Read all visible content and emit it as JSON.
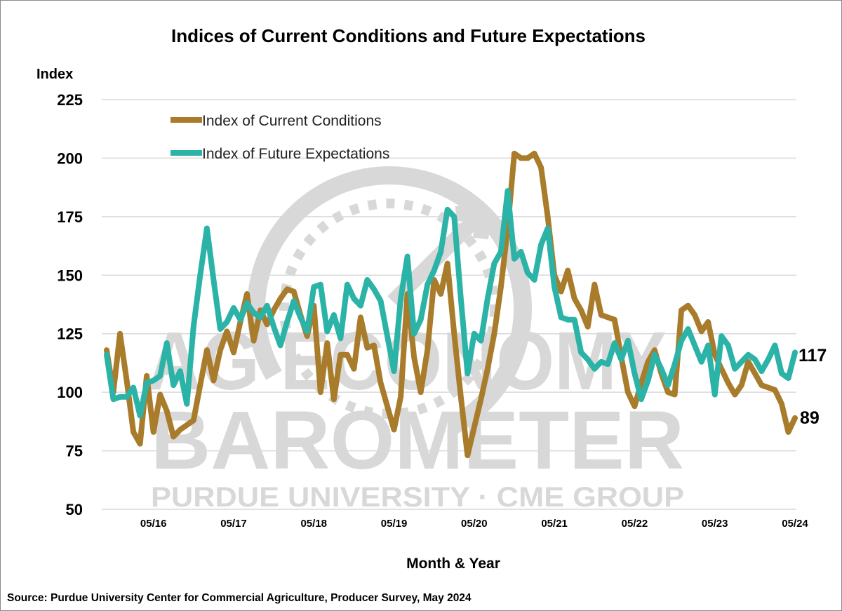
{
  "chart_data": {
    "type": "line",
    "title": "Indices of Current Conditions and Future Expectations",
    "ylabel": "Index",
    "xlabel": "Month & Year",
    "ylim": [
      50,
      225
    ],
    "yticks": [
      "50",
      "75",
      "100",
      "125",
      "150",
      "175",
      "200",
      "225"
    ],
    "x_start": "10/15",
    "x_end": "05/24",
    "xticks": [
      "05/16",
      "05/17",
      "05/18",
      "05/19",
      "05/20",
      "05/21",
      "05/22",
      "05/23",
      "05/24"
    ],
    "grid": true,
    "legend_position": "top-left",
    "series": [
      {
        "name": "Index of Current Conditions",
        "color": "#A97C2C",
        "end_label": "89",
        "values": [
          118,
          100,
          125,
          105,
          83,
          78,
          107,
          83,
          99,
          92,
          81,
          84,
          86,
          88,
          103,
          118,
          105,
          118,
          126,
          117,
          130,
          142,
          122,
          135,
          129,
          135,
          140,
          144,
          143,
          133,
          124,
          137,
          100,
          121,
          97,
          116,
          116,
          110,
          132,
          119,
          120,
          104,
          94,
          84,
          98,
          142,
          115,
          100,
          118,
          148,
          142,
          155,
          125,
          98,
          73,
          85,
          97,
          110,
          125,
          145,
          170,
          202,
          200,
          200,
          202,
          196,
          175,
          150,
          143,
          152,
          140,
          135,
          128,
          146,
          133,
          132,
          131,
          115,
          100,
          94,
          104,
          113,
          118,
          108,
          100,
          99,
          135,
          137,
          133,
          126,
          130,
          116,
          110,
          104,
          99,
          103,
          113,
          108,
          103,
          102,
          101,
          95,
          83,
          89
        ]
      },
      {
        "name": "Index of Future Expectations",
        "color": "#2BB3A8",
        "end_label": "117",
        "values": [
          116,
          97,
          98,
          98,
          102,
          90,
          104,
          105,
          107,
          121,
          103,
          109,
          95,
          128,
          150,
          170,
          148,
          127,
          130,
          136,
          131,
          138,
          134,
          132,
          137,
          128,
          120,
          130,
          139,
          132,
          126,
          145,
          146,
          126,
          133,
          123,
          146,
          140,
          137,
          148,
          144,
          139,
          124,
          109,
          140,
          158,
          125,
          131,
          146,
          152,
          160,
          178,
          175,
          140,
          108,
          125,
          122,
          140,
          155,
          160,
          186,
          157,
          160,
          151,
          148,
          163,
          170,
          145,
          132,
          131,
          131,
          117,
          114,
          110,
          113,
          112,
          121,
          114,
          122,
          108,
          97,
          105,
          116,
          110,
          103,
          112,
          122,
          127,
          120,
          113,
          120,
          99,
          124,
          120,
          110,
          113,
          116,
          114,
          109,
          114,
          120,
          108,
          106,
          117
        ]
      }
    ]
  },
  "watermark": {
    "line1": "AG ECONOMY",
    "line2": "BAROMETER",
    "line3": "PURDUE UNIVERSITY  ·  CME GROUP"
  },
  "source": "Source: Purdue University Center for Commercial Agriculture, Producer Survey, May 2024"
}
